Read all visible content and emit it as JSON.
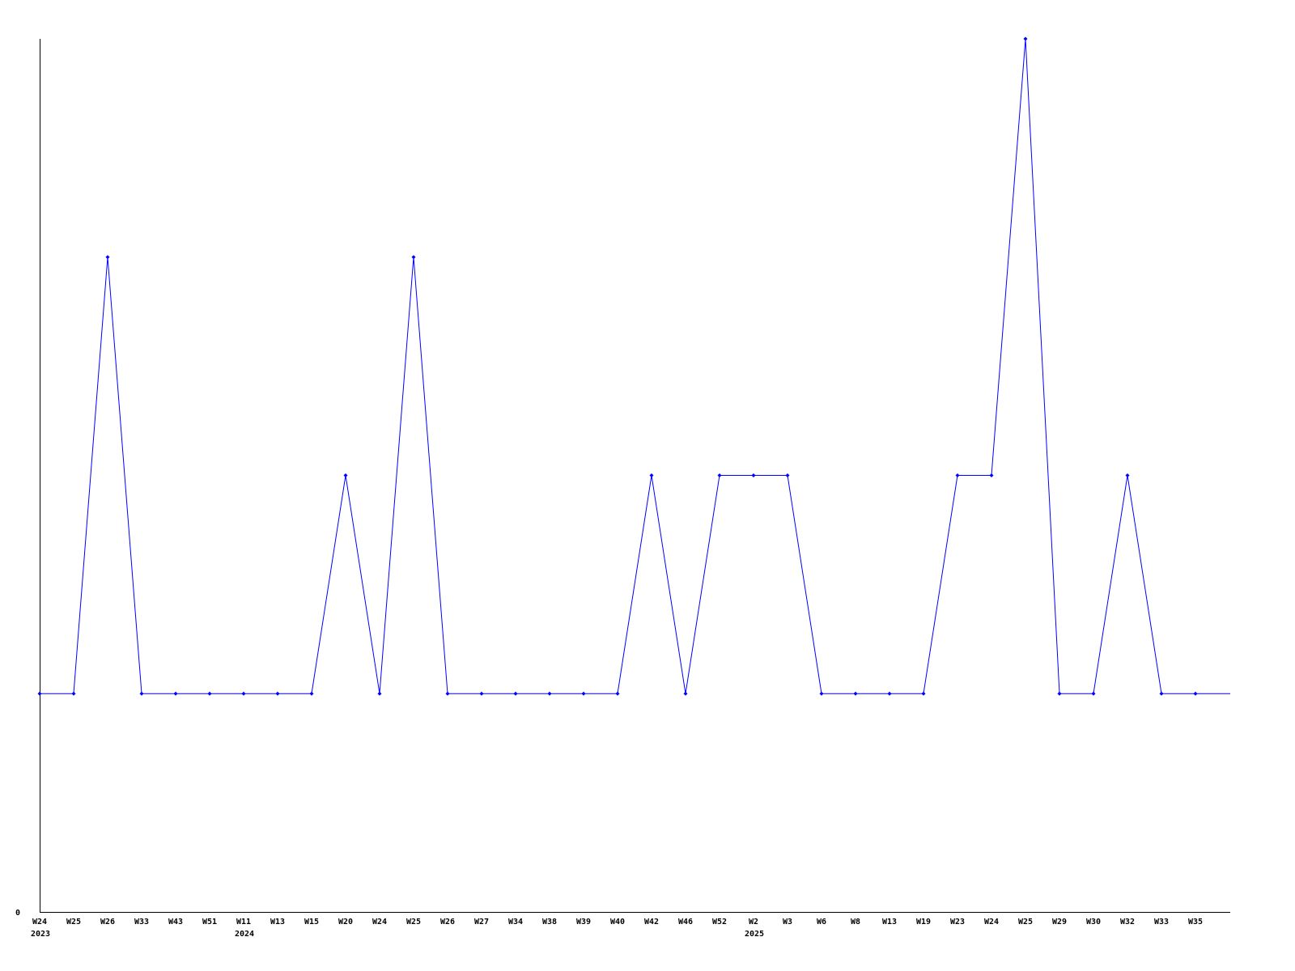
{
  "chart_data": {
    "type": "line",
    "title": "",
    "xlabel": "",
    "ylabel": "",
    "ylim": [
      0,
      4
    ],
    "y_tick_labels": [
      "0"
    ],
    "grid": false,
    "line_color": "#0000ff",
    "categories": [
      "W24",
      "W25",
      "W26",
      "W33",
      "W43",
      "W51",
      "W11",
      "W13",
      "W15",
      "W20",
      "W24",
      "W25",
      "W26",
      "W27",
      "W34",
      "W38",
      "W39",
      "W40",
      "W42",
      "W46",
      "W52",
      "W2",
      "W3",
      "W6",
      "W8",
      "W13",
      "W19",
      "W23",
      "W24",
      "W25",
      "W29",
      "W30",
      "W32",
      "W33",
      "W35"
    ],
    "year_labels": [
      {
        "index": 0,
        "label": "2023"
      },
      {
        "index": 6,
        "label": "2024"
      },
      {
        "index": 21,
        "label": "2025"
      }
    ],
    "values": [
      1,
      1,
      3,
      1,
      1,
      1,
      1,
      1,
      1,
      2,
      1,
      3,
      1,
      1,
      1,
      1,
      1,
      1,
      2,
      1,
      2,
      2,
      2,
      1,
      1,
      1,
      1,
      2,
      2,
      4,
      1,
      1,
      2,
      1,
      1
    ]
  }
}
